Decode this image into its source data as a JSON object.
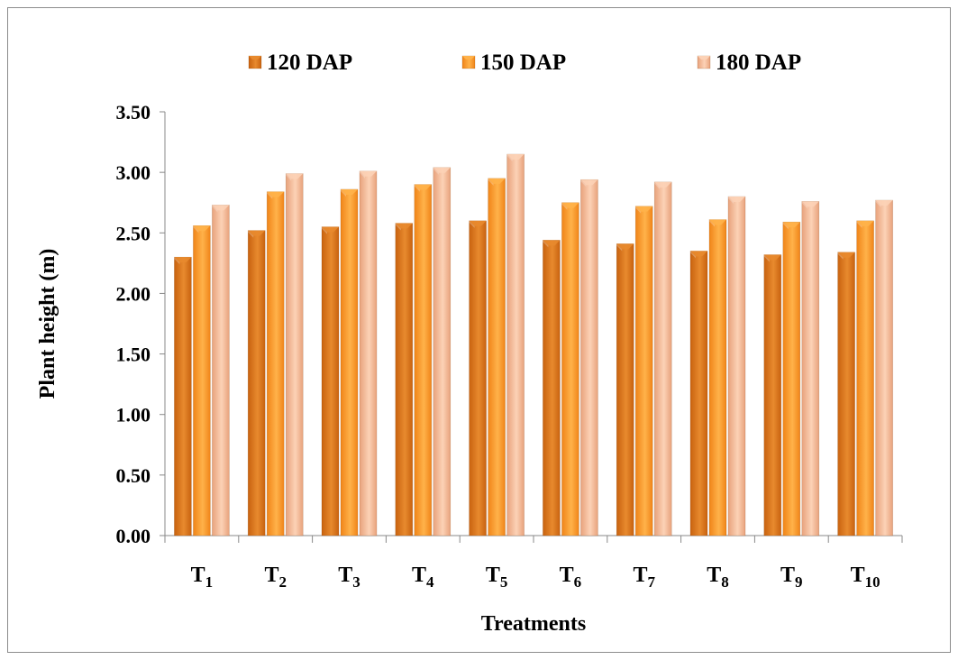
{
  "chart_data": {
    "type": "bar",
    "title": "",
    "xlabel": "Treatments",
    "ylabel": "Plant height (m)",
    "ylim": [
      0,
      3.5
    ],
    "yticks": [
      "0.00",
      "0.50",
      "1.00",
      "1.50",
      "2.00",
      "2.50",
      "3.00",
      "3.50"
    ],
    "categories": [
      {
        "base": "T",
        "sub": "1"
      },
      {
        "base": "T",
        "sub": "2"
      },
      {
        "base": "T",
        "sub": "3"
      },
      {
        "base": "T",
        "sub": "4"
      },
      {
        "base": "T",
        "sub": "5"
      },
      {
        "base": "T",
        "sub": "6"
      },
      {
        "base": "T",
        "sub": "7"
      },
      {
        "base": "T",
        "sub": "8"
      },
      {
        "base": "T",
        "sub": "9"
      },
      {
        "base": "T",
        "sub": "10"
      }
    ],
    "series": [
      {
        "name": "120 DAP",
        "color": "#c8620f",
        "light": "#e88a2e",
        "values": [
          2.3,
          2.52,
          2.55,
          2.58,
          2.6,
          2.44,
          2.41,
          2.35,
          2.32,
          2.34
        ]
      },
      {
        "name": "150 DAP",
        "color": "#f08418",
        "light": "#ffb24a",
        "values": [
          2.56,
          2.84,
          2.86,
          2.9,
          2.95,
          2.75,
          2.72,
          2.61,
          2.59,
          2.6
        ]
      },
      {
        "name": "180 DAP",
        "color": "#e8a27c",
        "light": "#fcd2b6",
        "values": [
          2.73,
          2.99,
          3.01,
          3.04,
          3.15,
          2.94,
          2.92,
          2.8,
          2.76,
          2.77
        ]
      }
    ],
    "legend_position": "top",
    "grid": false
  }
}
